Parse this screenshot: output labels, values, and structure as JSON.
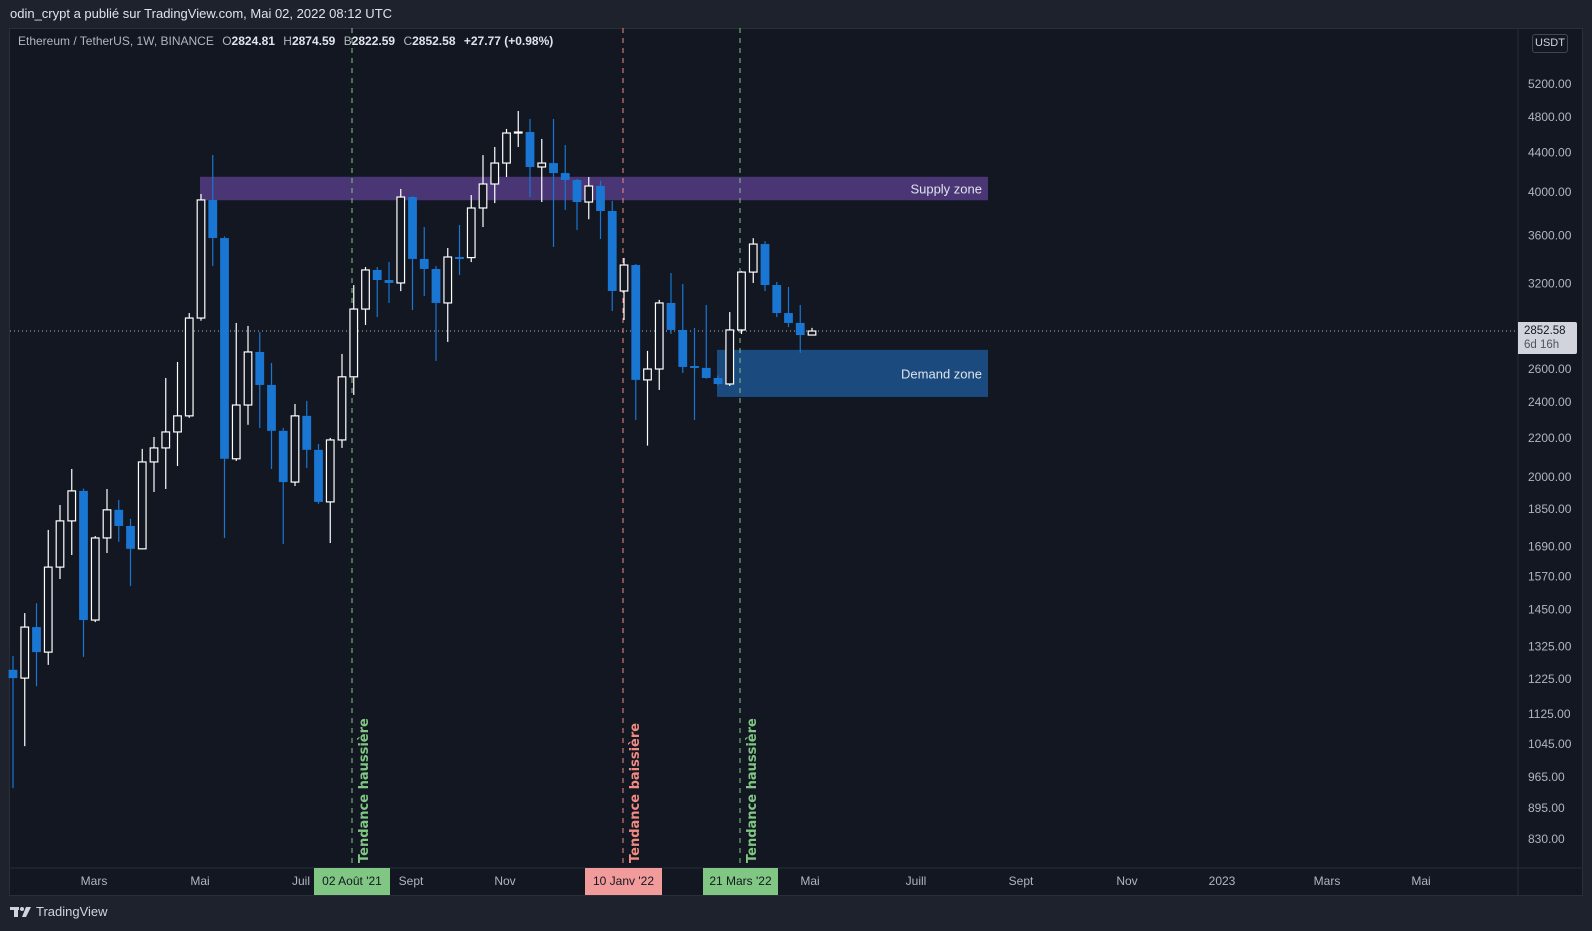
{
  "publisher_line": "odin_crypt a publié sur TradingView.com, Mai 02, 2022 08:12 UTC",
  "legend": {
    "symbol": "Ethereum / TetherUS, 1W, BINANCE",
    "o_label": "O",
    "o": "2824.81",
    "h_label": "H",
    "h": "2874.59",
    "l_label": "B",
    "l": "2822.59",
    "c_label": "C",
    "c": "2852.58",
    "change": "+27.77 (+0.98%)"
  },
  "currency_badge": "USDT",
  "last_price": {
    "value": "2852.58",
    "countdown": "6d 16h"
  },
  "branding": "TradingView",
  "colors": {
    "up_body": "#131722",
    "up_border": "#ffffff",
    "down": "#1976d2",
    "supply_zone": "#4a3675",
    "demand_zone": "#1a4a7e",
    "bullish_line": "#81c784",
    "bearish_line": "#f09999",
    "background": "#131722"
  },
  "annotations": {
    "supply_zone": {
      "label": "Supply zone",
      "top": 4150,
      "bottom": 3920
    },
    "demand_zone": {
      "label": "Demand zone",
      "top": 2725,
      "bottom": 2430
    },
    "vlines": [
      {
        "label": "Tendance haussière",
        "date_label": "02 Août '21",
        "color": "#81c784"
      },
      {
        "label": "Tendance baissière",
        "date_label": "10 Janv '22",
        "color": "#f28b82"
      },
      {
        "label": "Tendance haussière",
        "date_label": "21 Mars '22",
        "color": "#81c784"
      }
    ]
  },
  "time_axis": [
    "Mars",
    "Mai",
    "Juil",
    "Sept",
    "Nov",
    "Mai",
    "Juill",
    "Sept",
    "Nov",
    "2023",
    "Mars",
    "Mai"
  ],
  "chart_data": {
    "type": "candlestick",
    "title": "Ethereum / TetherUS, 1W, BINANCE",
    "yscale": "log",
    "ylim": [
      800,
      5600
    ],
    "grid": false,
    "price_ticks": [
      "5200.00",
      "4800.00",
      "4400.00",
      "4000.00",
      "3600.00",
      "3200.00",
      "2600.00",
      "2400.00",
      "2200.00",
      "2000.00",
      "1850.00",
      "1690.00",
      "1570.00",
      "1450.00",
      "1325.00",
      "1225.00",
      "1125.00",
      "1045.00",
      "965.00",
      "895.00",
      "830.00"
    ],
    "columns": [
      "week",
      "open",
      "high",
      "low",
      "close"
    ],
    "candles": [
      [
        "2021-01-11",
        1252,
        1295,
        939,
        1227
      ],
      [
        "2021-01-18",
        1227,
        1437,
        1040,
        1389
      ],
      [
        "2021-01-25",
        1389,
        1472,
        1203,
        1307
      ],
      [
        "2021-02-01",
        1307,
        1759,
        1267,
        1607
      ],
      [
        "2021-02-08",
        1607,
        1869,
        1561,
        1798
      ],
      [
        "2021-02-15",
        1798,
        2040,
        1655,
        1934
      ],
      [
        "2021-02-22",
        1934,
        1945,
        1292,
        1413
      ],
      [
        "2021-03-01",
        1413,
        1733,
        1406,
        1725
      ],
      [
        "2021-03-08",
        1725,
        1943,
        1663,
        1847
      ],
      [
        "2021-03-15",
        1847,
        1892,
        1709,
        1776
      ],
      [
        "2021-03-22",
        1776,
        1807,
        1535,
        1680
      ],
      [
        "2021-03-29",
        1680,
        2142,
        1678,
        2075
      ],
      [
        "2021-04-05",
        2075,
        2205,
        1929,
        2147
      ],
      [
        "2021-04-12",
        2147,
        2545,
        1943,
        2232
      ],
      [
        "2021-04-19",
        2232,
        2646,
        2055,
        2321
      ],
      [
        "2021-04-26",
        2321,
        2980,
        2310,
        2944
      ],
      [
        "2021-05-03",
        2944,
        3980,
        2925,
        3923
      ],
      [
        "2021-05-10",
        3923,
        4375,
        3341,
        3576
      ],
      [
        "2021-05-17",
        3576,
        3590,
        1725,
        2091
      ],
      [
        "2021-05-24",
        2091,
        2909,
        2080,
        2383
      ],
      [
        "2021-05-31",
        2383,
        2888,
        2271,
        2711
      ],
      [
        "2021-06-07",
        2711,
        2846,
        2254,
        2502
      ],
      [
        "2021-06-14",
        2502,
        2640,
        2040,
        2238
      ],
      [
        "2021-06-21",
        2238,
        2254,
        1700,
        1976
      ],
      [
        "2021-06-28",
        1976,
        2389,
        1957,
        2321
      ],
      [
        "2021-07-05",
        2321,
        2407,
        2045,
        2137
      ],
      [
        "2021-07-12",
        2137,
        2168,
        1874,
        1883
      ],
      [
        "2021-07-19",
        1883,
        2200,
        1704,
        2189
      ],
      [
        "2021-07-26",
        2189,
        2698,
        2147,
        2552
      ],
      [
        "2021-08-02",
        2552,
        3190,
        2442,
        3009
      ],
      [
        "2021-08-09",
        3009,
        3333,
        2895,
        3309
      ],
      [
        "2021-08-16",
        3309,
        3333,
        2951,
        3229
      ],
      [
        "2021-08-23",
        3229,
        3374,
        3054,
        3206
      ],
      [
        "2021-08-30",
        3206,
        4029,
        3143,
        3951
      ],
      [
        "2021-09-06",
        3951,
        3960,
        3002,
        3399
      ],
      [
        "2021-09-13",
        3399,
        3673,
        3106,
        3317
      ],
      [
        "2021-09-20",
        3317,
        3340,
        2653,
        3054
      ],
      [
        "2021-09-27",
        3054,
        3490,
        2778,
        3415
      ],
      [
        "2021-10-04",
        3415,
        3691,
        3268,
        3410
      ],
      [
        "2021-10-11",
        3410,
        3970,
        3373,
        3847
      ],
      [
        "2021-10-18",
        3847,
        4375,
        3673,
        4078
      ],
      [
        "2021-10-25",
        4078,
        4462,
        3893,
        4291
      ],
      [
        "2021-11-01",
        4291,
        4662,
        4148,
        4616
      ],
      [
        "2021-11-08",
        4616,
        4870,
        4462,
        4627
      ],
      [
        "2021-11-15",
        4627,
        4776,
        3951,
        4250
      ],
      [
        "2021-11-22",
        4250,
        4550,
        3903,
        4291
      ],
      [
        "2021-11-29",
        4291,
        4776,
        3499,
        4188
      ],
      [
        "2021-12-06",
        4188,
        4483,
        3829,
        4118
      ],
      [
        "2021-12-13",
        4118,
        4128,
        3646,
        3903
      ],
      [
        "2021-12-20",
        3903,
        4148,
        3743,
        4058
      ],
      [
        "2021-12-27",
        4058,
        4110,
        3568,
        3819
      ],
      [
        "2022-01-03",
        3819,
        3913,
        2995,
        3144
      ],
      [
        "2022-01-10",
        3144,
        3407,
        2930,
        3349
      ],
      [
        "2022-01-17",
        3349,
        3357,
        2298,
        2533
      ],
      [
        "2022-01-24",
        2533,
        2718,
        2159,
        2601
      ],
      [
        "2022-01-31",
        2601,
        3077,
        2472,
        3054
      ],
      [
        "2022-02-07",
        3054,
        3284,
        2832,
        2860
      ],
      [
        "2022-02-14",
        2860,
        3198,
        2576,
        2614
      ],
      [
        "2022-02-21",
        2620,
        2874,
        2298,
        2608
      ],
      [
        "2022-02-28",
        2608,
        3039,
        2540,
        2545
      ],
      [
        "2022-03-07",
        2545,
        2560,
        2500,
        2508
      ],
      [
        "2022-03-14",
        2508,
        2987,
        2496,
        2860
      ],
      [
        "2022-03-21",
        2860,
        3300,
        2832,
        3292
      ],
      [
        "2022-03-28",
        3292,
        3575,
        3206,
        3524
      ],
      [
        "2022-04-04",
        3524,
        3549,
        3143,
        3190
      ],
      [
        "2022-04-11",
        3190,
        3214,
        2951,
        2980
      ],
      [
        "2022-04-18",
        2980,
        3175,
        2880,
        2909
      ],
      [
        "2022-04-25",
        2909,
        3039,
        2705,
        2825
      ],
      [
        "2022-05-02",
        2824.81,
        2874.59,
        2822.59,
        2852.58
      ]
    ]
  }
}
